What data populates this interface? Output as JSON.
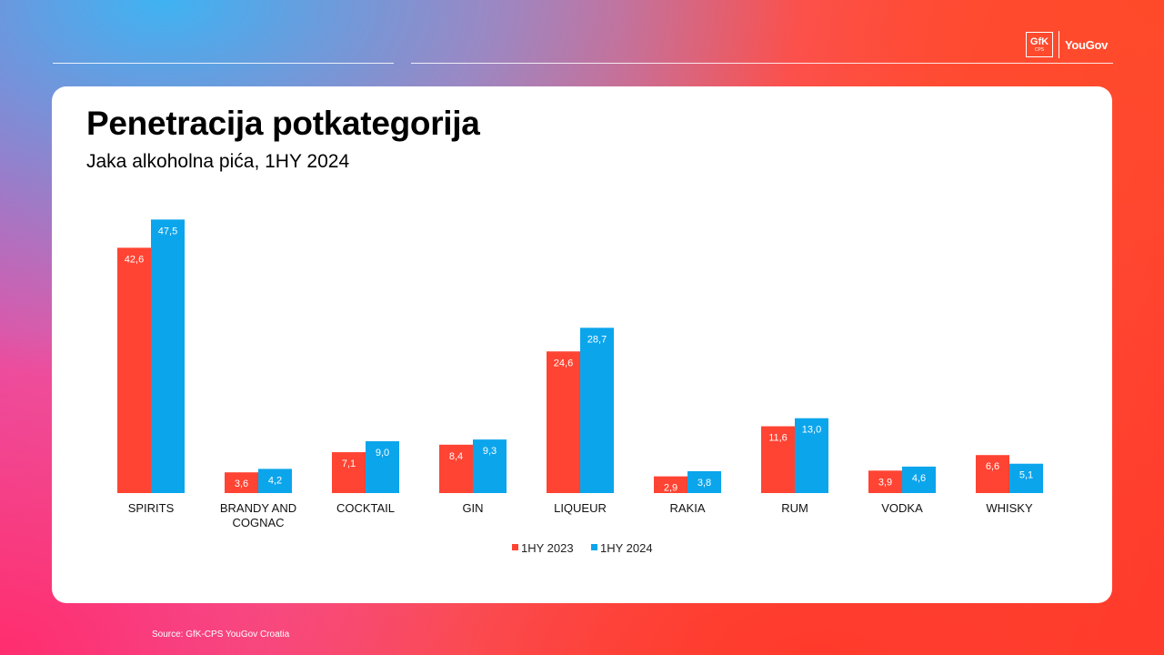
{
  "header": {
    "logo_gfk": "GfK",
    "logo_cps": "CPS",
    "logo_yougov": "YouGov"
  },
  "slide": {
    "title": "Penetracija potkategorija",
    "subtitle": "Jaka alkoholna pića, 1HY 2024",
    "source": "Source: GfK-CPS YouGov Croatia"
  },
  "colors": {
    "series_2023": "#ff4433",
    "series_2024": "#0ba5ec"
  },
  "chart_data": {
    "type": "bar",
    "title": "",
    "xlabel": "",
    "ylabel": "",
    "ylim": [
      0,
      50
    ],
    "grid": false,
    "legend": "bottom-center",
    "categories": [
      "SPIRITS",
      "BRANDY AND COGNAC",
      "COCKTAIL",
      "GIN",
      "LIQUEUR",
      "RAKIA",
      "RUM",
      "VODKA",
      "WHISKY"
    ],
    "series": [
      {
        "name": "1HY 2023",
        "values": [
          42.6,
          3.6,
          7.1,
          8.4,
          24.6,
          2.9,
          11.6,
          3.9,
          6.6
        ],
        "labels": [
          "42,6",
          "3,6",
          "7,1",
          "8,4",
          "24,6",
          "2,9",
          "11,6",
          "3,9",
          "6,6"
        ]
      },
      {
        "name": "1HY 2024",
        "values": [
          47.5,
          4.2,
          9.0,
          9.3,
          28.7,
          3.8,
          13.0,
          4.6,
          5.1
        ],
        "labels": [
          "47,5",
          "4,2",
          "9,0",
          "9,3",
          "28,7",
          "3,8",
          "13,0",
          "4,6",
          "5,1"
        ]
      }
    ]
  }
}
